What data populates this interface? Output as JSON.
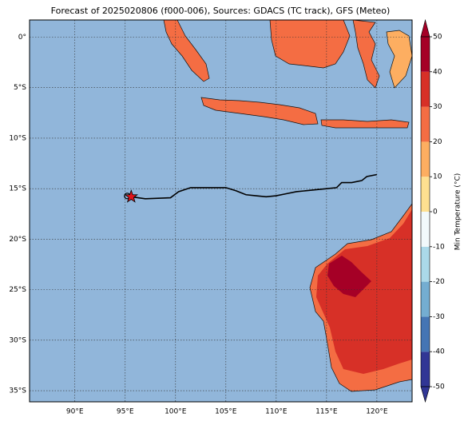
{
  "map": {
    "title": "Forecast of 2025020806 (f000-006), Sources: GDACS (TC track), GFS (Meteo)",
    "lonlim": [
      85.5,
      123.5
    ],
    "latlim": [
      -36.1,
      1.7
    ],
    "lonticks": [
      {
        "value": 90,
        "label": "90°E"
      },
      {
        "value": 95,
        "label": "95°E"
      },
      {
        "value": 100,
        "label": "100°E"
      },
      {
        "value": 105,
        "label": "105°E"
      },
      {
        "value": 110,
        "label": "110°E"
      },
      {
        "value": 115,
        "label": "115°E"
      },
      {
        "value": 120,
        "label": "120°E"
      }
    ],
    "latticks": [
      {
        "value": 0,
        "label": "0°"
      },
      {
        "value": -5,
        "label": "5°S"
      },
      {
        "value": -10,
        "label": "10°S"
      },
      {
        "value": -15,
        "label": "15°S"
      },
      {
        "value": -20,
        "label": "20°S"
      },
      {
        "value": -25,
        "label": "25°S"
      },
      {
        "value": -30,
        "label": "30°S"
      },
      {
        "value": -35,
        "label": "35°S"
      }
    ],
    "track": {
      "lon": [
        95.6,
        97,
        99.5,
        100.3,
        101.5,
        105,
        106,
        107,
        108,
        109,
        110,
        111,
        112,
        113,
        114,
        115,
        116,
        116.5,
        117.5,
        118.5,
        119,
        120
      ],
      "lat": [
        -15.8,
        -16,
        -15.9,
        -15.3,
        -14.9,
        -14.9,
        -15.2,
        -15.6,
        -15.7,
        -15.8,
        -15.7,
        -15.5,
        -15.3,
        -15.2,
        -15.1,
        -15.0,
        -14.9,
        -14.4,
        -14.4,
        -14.2,
        -13.8,
        -13.6
      ],
      "color": "#000000",
      "marker_color": "#e0141b"
    }
  },
  "colorbar": {
    "label": "Min Temperature (°C)",
    "ticks": [
      -50,
      -40,
      -30,
      -20,
      -10,
      0,
      10,
      20,
      30,
      40,
      50
    ],
    "colors": [
      "#313695",
      "#4575b4",
      "#74add1",
      "#abd9e9",
      "#f2f9fb",
      "#fee090",
      "#fdae61",
      "#f46d43",
      "#d73027",
      "#a50026"
    ]
  }
}
